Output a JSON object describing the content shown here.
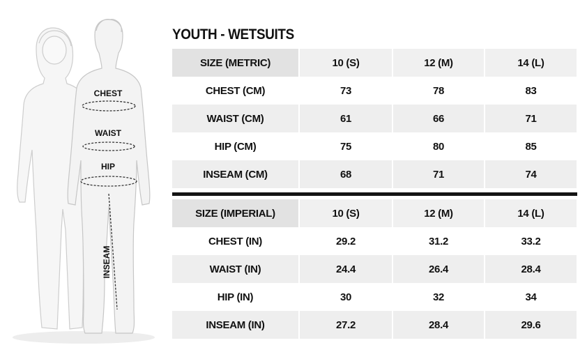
{
  "title": "YOUTH - WETSUITS",
  "figure": {
    "labels": {
      "chest": "CHEST",
      "waist": "WAIST",
      "hip": "HIP",
      "inseam": "INSEAM"
    }
  },
  "metric": {
    "header": [
      "SIZE (METRIC)",
      "10 (S)",
      "12 (M)",
      "14 (L)"
    ],
    "rows": [
      [
        "CHEST (CM)",
        "73",
        "78",
        "83"
      ],
      [
        "WAIST (CM)",
        "61",
        "66",
        "71"
      ],
      [
        "HIP (CM)",
        "75",
        "80",
        "85"
      ],
      [
        "INSEAM (CM)",
        "68",
        "71",
        "74"
      ]
    ]
  },
  "imperial": {
    "header": [
      "SIZE (IMPERIAL)",
      "10 (S)",
      "12 (M)",
      "14 (L)"
    ],
    "rows": [
      [
        "CHEST (IN)",
        "29.2",
        "31.2",
        "33.2"
      ],
      [
        "WAIST (IN)",
        "24.4",
        "26.4",
        "28.4"
      ],
      [
        "HIP (IN)",
        "30",
        "32",
        "34"
      ],
      [
        "INSEAM (IN)",
        "27.2",
        "28.4",
        "29.6"
      ]
    ]
  },
  "colors": {
    "header_first_cell": "#e2e2e2",
    "header_cell": "#f0f0f0",
    "shaded_row": "#eeeeee",
    "divider": "#141414",
    "figure_fill": "#f4f4f4",
    "figure_stroke": "#c9c9c9"
  }
}
